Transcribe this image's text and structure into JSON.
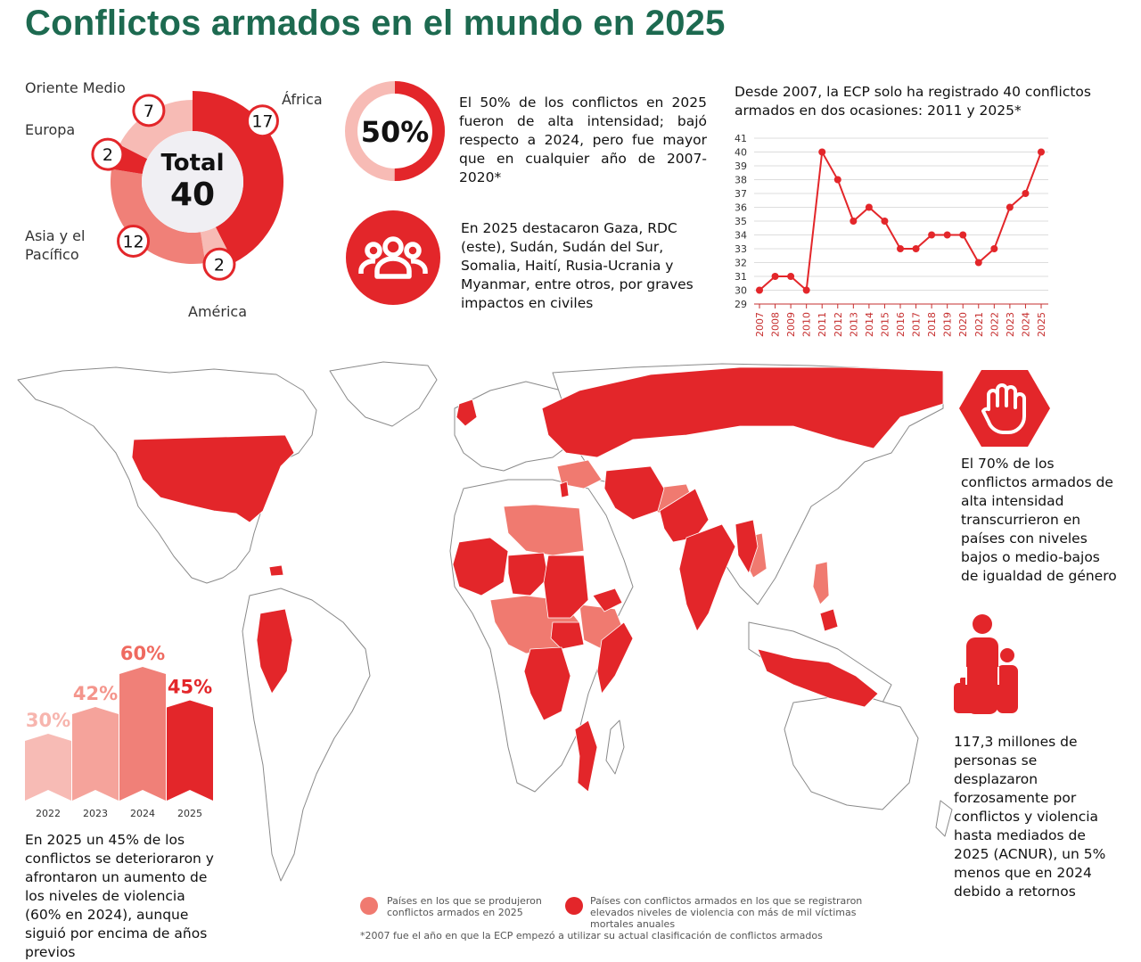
{
  "title": "Conflictos armados en el mundo en 2025",
  "colors": {
    "title_green": "#1d6a50",
    "strong_red": "#e3262a",
    "medium_red": "#f08078",
    "light_red": "#f7bbb5",
    "axis_red": "#c62f2f"
  },
  "total_label": "Total",
  "total_value": "40",
  "regions": [
    {
      "name": "Oriente Medio",
      "value": "7"
    },
    {
      "name": "Europa",
      "value": "2"
    },
    {
      "name": "Asia y el Pacífico",
      "value": "12"
    },
    {
      "name": "América",
      "value": "2"
    },
    {
      "name": "África",
      "value": "17"
    }
  ],
  "high_intensity": {
    "percent_label": "50%",
    "fraction": 0.5,
    "text": "El 50% de los conflictos en 2025 fueron de alta intensidad; bajó respecto a 2024, pero fue mayor que en cualquier año de 2007-2020*"
  },
  "civilians": {
    "icon": "people-group-icon",
    "text": "En 2025 destacaron Gaza, RDC (este), Sudán, Sudán del Sur, Somalia, Haití, Rusia-Ucrania y Myanmar, entre otros, por graves impactos en civiles"
  },
  "gender": {
    "icon": "raised-hand-icon",
    "text": "El 70% de los conflictos armados de alta intensidad transcurrieron en países con niveles bajos o medio-bajos de igualdad de género"
  },
  "displaced": {
    "icon": "family-icon",
    "text": "117,3 millones de personas se desplazaron forzosamente por conflictos y violencia hasta mediados de 2025 (ACNUR), un 5% menos que en 2024 debido a retornos"
  },
  "deteriorated": {
    "text": "En 2025 un 45% de los conflictos se deterioraron y afrontaron un aumento de los niveles de violencia (60% en 2024), aunque siguió por encima de años previos"
  },
  "legend": {
    "light": "Países en los que se produjeron conflictos armados en 2025",
    "strong": "Países con conflictos armados en los que se registraron elevados niveles de violencia con más de mil víctimas mortales anuales"
  },
  "footnote": "*2007 fue el año en que la ECP empezó a utilizar su actual clasificación de conflictos armados",
  "chart_data": [
    {
      "type": "pie",
      "title": "Total 40",
      "categories": [
        "África",
        "América",
        "Asia y el Pacífico",
        "Europa",
        "Oriente Medio"
      ],
      "values": [
        17,
        2,
        12,
        2,
        7
      ]
    },
    {
      "type": "line",
      "title": "Desde 2007, la ECP solo ha registrado 40 conflictos armados en dos ocasiones: 2011 y 2025*",
      "x": [
        "2007",
        "2008",
        "2009",
        "2010",
        "2011",
        "2012",
        "2013",
        "2014",
        "2015",
        "2016",
        "2017",
        "2018",
        "2019",
        "2020",
        "2021",
        "2022",
        "2023",
        "2024",
        "2025"
      ],
      "values": [
        30,
        31,
        31,
        30,
        40,
        38,
        35,
        36,
        35,
        33,
        33,
        34,
        34,
        34,
        32,
        33,
        36,
        37,
        40
      ],
      "ylim": [
        29,
        41
      ],
      "yticks": [
        29,
        30,
        31,
        32,
        33,
        34,
        35,
        36,
        37,
        38,
        39,
        40,
        41
      ],
      "grid": true,
      "xlabel": "",
      "ylabel": ""
    },
    {
      "type": "bar",
      "categories": [
        "2022",
        "2023",
        "2024",
        "2025"
      ],
      "values": [
        30,
        42,
        60,
        45
      ],
      "labels": [
        "30%",
        "42%",
        "60%",
        "45%"
      ],
      "ylim": [
        0,
        70
      ]
    }
  ]
}
